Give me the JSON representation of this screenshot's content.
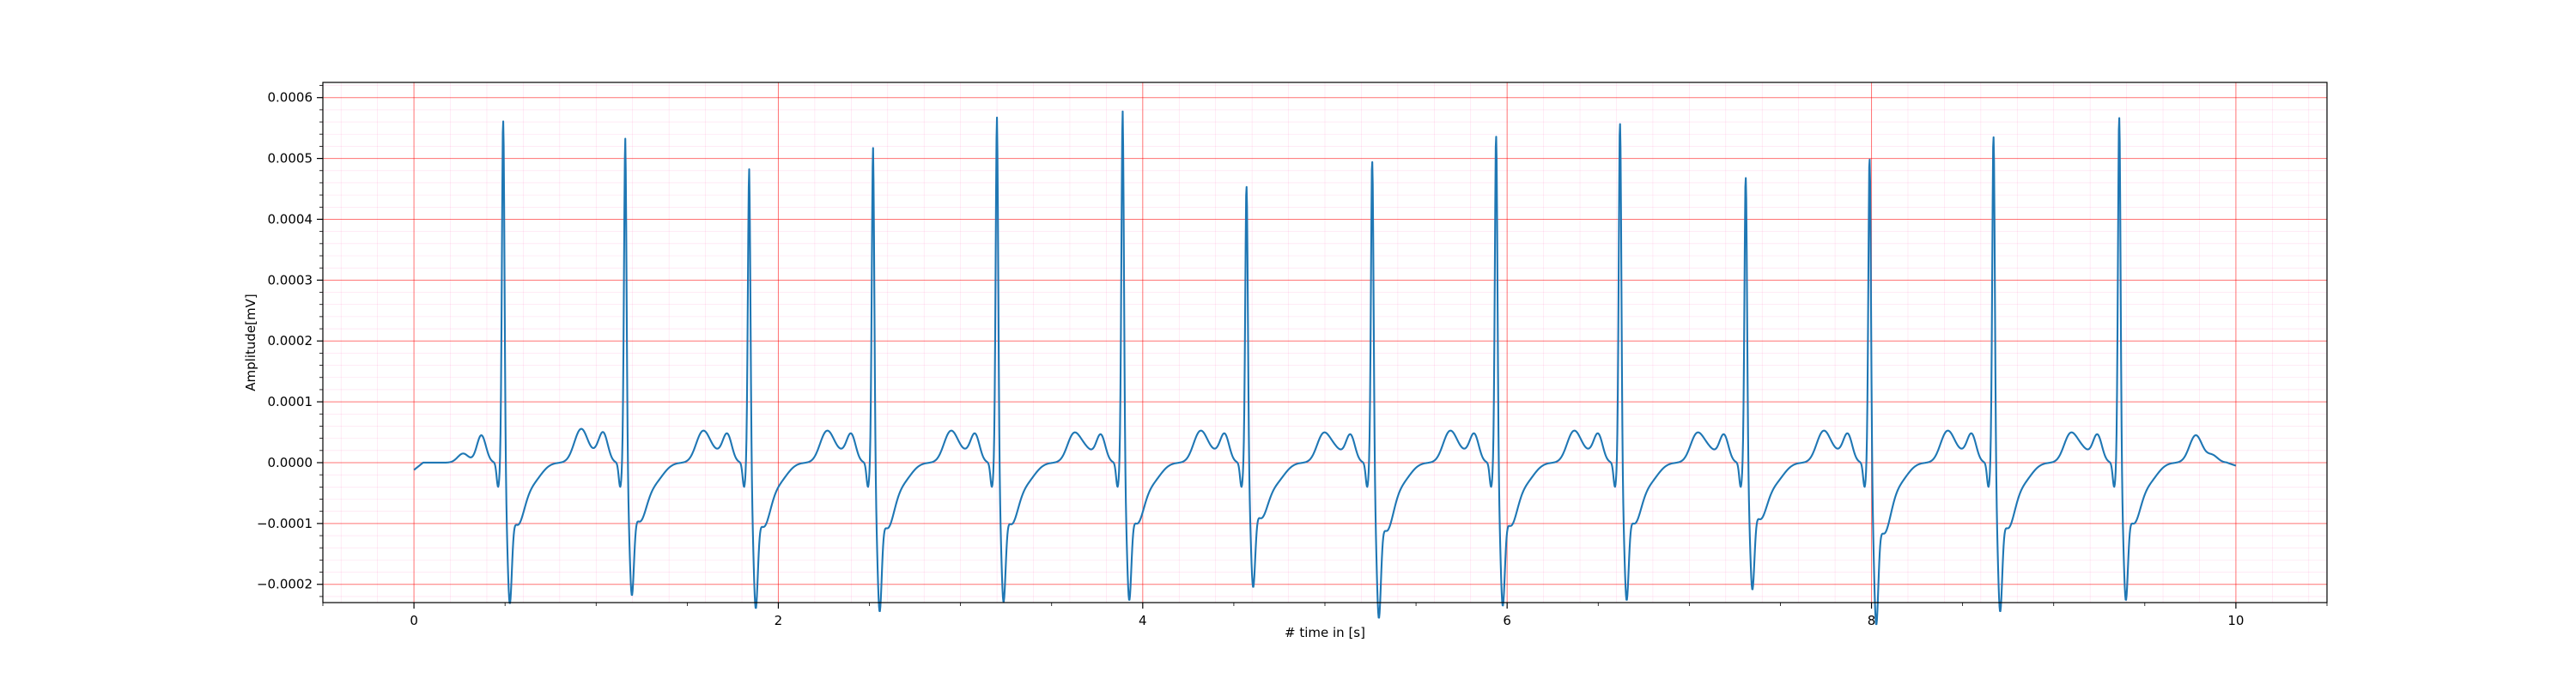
{
  "chart_data": {
    "type": "line",
    "title": "",
    "xlabel": "# time in [s]",
    "ylabel": "Amplitude[mV]",
    "xlim": [
      -0.5,
      10.5
    ],
    "ylim": [
      -0.00023,
      0.000625
    ],
    "x_ticks": [
      0,
      2,
      4,
      6,
      8,
      10
    ],
    "x_tick_labels": [
      "0",
      "2",
      "4",
      "6",
      "8",
      "10"
    ],
    "y_ticks": [
      -0.0002,
      -0.0001,
      0.0,
      0.0001,
      0.0002,
      0.0003,
      0.0004,
      0.0005,
      0.0006
    ],
    "y_tick_labels": [
      "−0.0002",
      "−0.0001",
      "0.0000",
      "0.0001",
      "0.0002",
      "0.0003",
      "0.0004",
      "0.0005",
      "0.0006"
    ],
    "grid": {
      "major": true,
      "minor": true
    },
    "colors": {
      "line": "#1f77b4",
      "major_grid": "#ff0000",
      "minor_grid": "#ff69b4",
      "axes": "#000000"
    },
    "series": [
      {
        "name": "",
        "signal": "ECG",
        "sampling_step_s": 0.01,
        "r_peak_times": [
          0.49,
          1.16,
          1.84,
          2.52,
          3.2,
          3.89,
          4.57,
          5.26,
          5.94,
          6.62,
          7.31,
          7.99,
          8.67,
          9.36
        ],
        "r_peak_values": [
          0.00058,
          0.000535,
          0.000485,
          0.00052,
          0.00057,
          0.00058,
          0.00047,
          0.000515,
          0.000555,
          0.000575,
          0.000485,
          0.00052,
          0.000555,
          0.000585
        ],
        "s_trough_values": [
          -0.000172,
          -0.000162,
          -0.000178,
          -0.000182,
          -0.00017,
          -0.000168,
          -0.000152,
          -0.00019,
          -0.000175,
          -0.000168,
          -0.000155,
          -0.000198,
          -0.000182,
          -0.000168
        ],
        "p_wave_amplitude": 4.5e-05,
        "t_wave_amplitude": 4.5e-05,
        "x_start": 0.0,
        "x_end": 10.0,
        "y_start": -1.2e-05,
        "y_end": -5e-06
      }
    ]
  }
}
